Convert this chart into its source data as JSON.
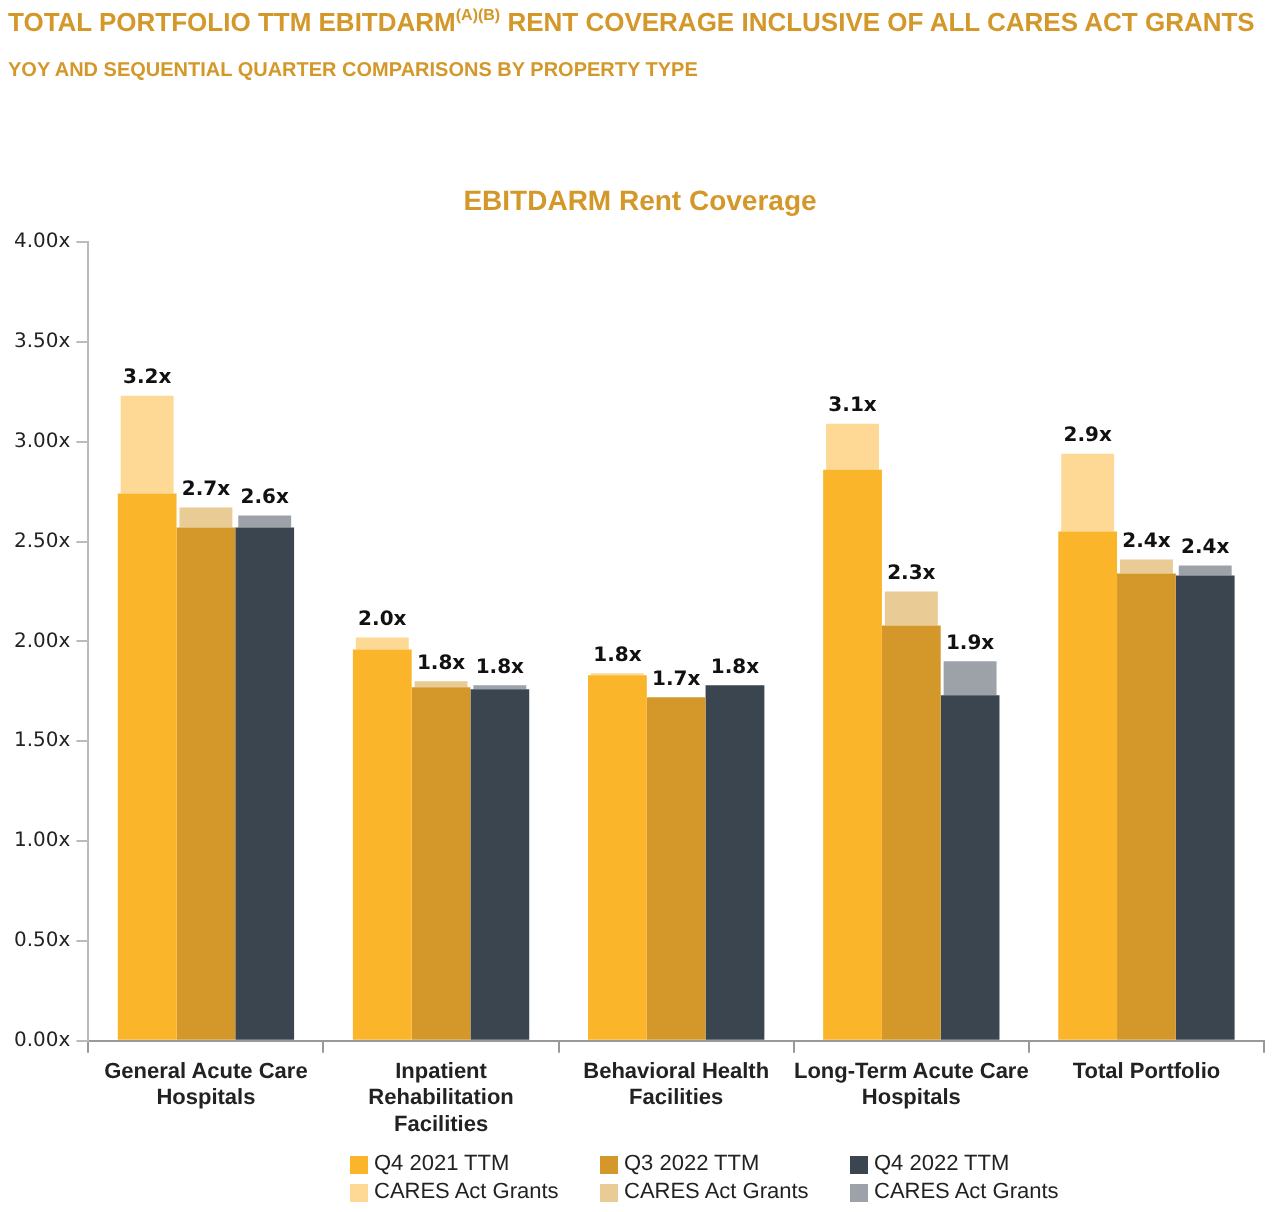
{
  "chart_data": {
    "type": "bar",
    "title": "TOTAL PORTFOLIO TTM EBITDARM$^{(A)(B)}$ RENT COVERAGE INCLUSIVE OF ALL CARES ACT GRANTS",
    "subtitle": "YOY AND SEQUENTIAL QUARTER COMPARISONS BY PROPERTY TYPE",
    "annotations": [
      "EBITDARM Rent Coverage"
    ],
    "categories": [
      "General Acute Care Hospitals",
      "Inpatient Rehabilitation Facilities",
      "Behavioral Health Facilities",
      "Long-Term Acute Care Hospitals",
      "Total Portfolio"
    ],
    "series": [
      {
        "name": "Q4 2021 TTM",
        "color": "#fbb52b",
        "values": [
          2.74,
          1.96,
          1.83,
          2.86,
          2.55
        ]
      },
      {
        "name": "Q3 2022 TTM",
        "color": "#d4982a",
        "values": [
          2.57,
          1.77,
          1.72,
          2.08,
          2.34
        ],
        "value_labels": [
          null,
          null,
          "1.7x",
          null,
          null
        ]
      },
      {
        "name": "Q4 2022 TTM",
        "color": "#3a454f",
        "values": [
          2.57,
          1.76,
          1.78,
          1.73,
          2.33
        ],
        "value_labels": [
          null,
          null,
          "1.8x",
          null,
          null
        ]
      },
      {
        "name": "CARES Act Grants",
        "color": "#fdd995",
        "base": [
          2.74,
          1.96,
          1.83,
          2.86,
          2.55
        ],
        "values": [
          0.49,
          0.06,
          0.01,
          0.23,
          0.39
        ],
        "value_labels": [
          "3.2x",
          "2.0x",
          "1.8x",
          "3.1x",
          "2.9x"
        ]
      },
      {
        "name": "CARES Act Grants",
        "color": "#e9cb95",
        "base": [
          2.57,
          1.77,
          null,
          2.08,
          2.34
        ],
        "values": [
          0.1,
          0.03,
          null,
          0.17,
          0.07
        ],
        "value_labels": [
          "2.7x",
          "1.8x",
          null,
          "2.3x",
          "2.4x"
        ]
      },
      {
        "name": "CARES Act Grants",
        "color": "#9ca2a7",
        "base": [
          2.57,
          1.76,
          null,
          1.73,
          2.33
        ],
        "values": [
          0.06,
          0.02,
          null,
          0.17,
          0.05
        ],
        "value_labels": [
          "2.6x",
          "1.8x",
          null,
          "1.9x",
          "2.4x"
        ]
      }
    ],
    "ylim": [
      0,
      4
    ],
    "yticks": [
      {
        "value": 0,
        "label": "0.00x"
      },
      {
        "value": 0.5,
        "label": "0.50x"
      },
      {
        "value": 1,
        "label": "1.00x"
      },
      {
        "value": 1.5,
        "label": "1.50x"
      },
      {
        "value": 2,
        "label": "2.00x"
      },
      {
        "value": 2.5,
        "label": "2.50x"
      },
      {
        "value": 3,
        "label": "3.00x"
      },
      {
        "value": 3.5,
        "label": "3.50x"
      },
      {
        "value": 4,
        "label": "4.00x"
      }
    ],
    "grid": false,
    "legend": "bottom"
  }
}
